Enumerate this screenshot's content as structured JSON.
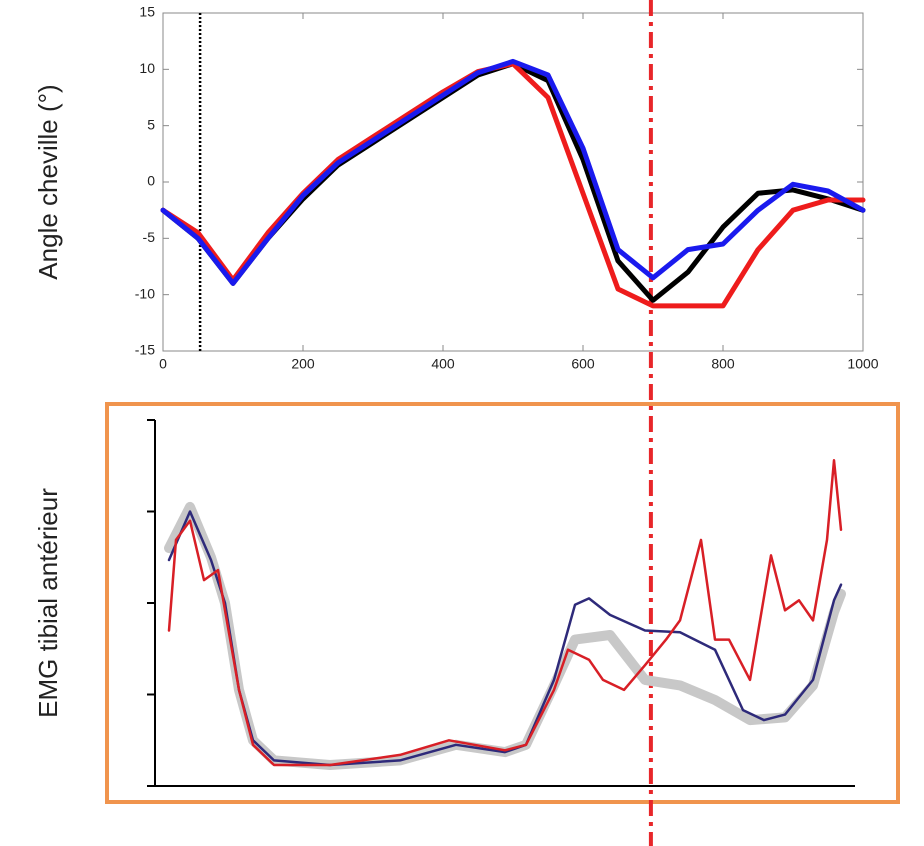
{
  "chart_data": [
    {
      "type": "line",
      "ylabel": "Angle cheville (°)",
      "xlim": [
        0,
        1000
      ],
      "xticks": [
        0,
        200,
        400,
        600,
        800,
        1000
      ],
      "ylim": [
        -15,
        15
      ],
      "yticks": [
        -15,
        -10,
        -5,
        0,
        5,
        10,
        15
      ],
      "vlines": [
        {
          "x": 53,
          "color": "#000000",
          "style": "dotted"
        },
        {
          "x": 697,
          "color": "#e8262a",
          "style": "dashdot"
        }
      ],
      "series": [
        {
          "color": "#000000",
          "x": [
            0,
            50,
            100,
            150,
            200,
            250,
            300,
            350,
            400,
            450,
            500,
            550,
            600,
            650,
            700,
            750,
            800,
            850,
            900,
            950,
            1000
          ],
          "values": [
            -2.5,
            -5,
            -9,
            -5,
            -1.5,
            1.5,
            3.5,
            5.5,
            7.5,
            9.5,
            10.5,
            9,
            2,
            -7,
            -10.5,
            -8,
            -4,
            -1,
            -0.7,
            -1.5,
            -2.5
          ]
        },
        {
          "color": "#ee1c1c",
          "x": [
            0,
            50,
            100,
            150,
            200,
            250,
            300,
            350,
            400,
            450,
            500,
            550,
            600,
            650,
            700,
            750,
            800,
            850,
            900,
            950,
            1000
          ],
          "values": [
            -2.5,
            -4.5,
            -8.7,
            -4.5,
            -1,
            2,
            4,
            6,
            8,
            9.8,
            10.5,
            7.5,
            -1,
            -9.5,
            -11,
            -11,
            -11,
            -6,
            -2.5,
            -1.6,
            -1.6
          ]
        },
        {
          "color": "#1a1aee",
          "x": [
            0,
            50,
            100,
            150,
            200,
            250,
            300,
            350,
            400,
            450,
            500,
            550,
            600,
            650,
            700,
            750,
            800,
            850,
            900,
            950,
            1000
          ],
          "values": [
            -2.5,
            -5,
            -9,
            -5,
            -1.2,
            1.7,
            3.7,
            5.7,
            7.7,
            9.7,
            10.7,
            9.5,
            3,
            -6,
            -8.5,
            -6,
            -5.5,
            -2.5,
            -0.2,
            -0.8,
            -2.5
          ]
        }
      ]
    },
    {
      "type": "line",
      "ylabel": "EMG tibial antérieur",
      "xlim": [
        0,
        100
      ],
      "ylim": [
        0,
        4
      ],
      "yticks": [
        0,
        1,
        2,
        3,
        4
      ],
      "series": [
        {
          "color": "#c8c8c8",
          "x": [
            2,
            5,
            8,
            10,
            12,
            14,
            17,
            25,
            35,
            43,
            50,
            53,
            57,
            60,
            65,
            70,
            75,
            80,
            85,
            90,
            94,
            97,
            98
          ],
          "values": [
            2.6,
            3.05,
            2.5,
            2.0,
            1.05,
            0.5,
            0.28,
            0.23,
            0.28,
            0.45,
            0.37,
            0.45,
            1.1,
            1.6,
            1.65,
            1.16,
            1.1,
            0.94,
            0.72,
            0.75,
            1.1,
            1.9,
            2.1
          ]
        },
        {
          "color": "#2e2a7a",
          "x": [
            2,
            5,
            8,
            10,
            12,
            14,
            17,
            25,
            35,
            43,
            50,
            53,
            57,
            60,
            62,
            65,
            70,
            75,
            80,
            84,
            87,
            90,
            94,
            97,
            98
          ],
          "values": [
            2.47,
            3.0,
            2.47,
            2.0,
            1.05,
            0.5,
            0.28,
            0.23,
            0.28,
            0.45,
            0.37,
            0.45,
            1.16,
            1.98,
            2.05,
            1.87,
            1.7,
            1.68,
            1.49,
            0.83,
            0.72,
            0.78,
            1.16,
            2.03,
            2.2
          ]
        },
        {
          "color": "#d81f26",
          "x": [
            2,
            3,
            5,
            7,
            9,
            10,
            12,
            14,
            17,
            25,
            35,
            42,
            50,
            53,
            57,
            59,
            62,
            64,
            67,
            70,
            73,
            75,
            78,
            80,
            82,
            85,
            88,
            90,
            92,
            94,
            96,
            97,
            98
          ],
          "values": [
            1.7,
            2.69,
            2.9,
            2.25,
            2.36,
            1.92,
            1.05,
            0.45,
            0.23,
            0.23,
            0.34,
            0.5,
            0.39,
            0.45,
            1.05,
            1.49,
            1.38,
            1.16,
            1.05,
            1.32,
            1.6,
            1.81,
            2.69,
            1.6,
            1.6,
            1.16,
            2.52,
            1.92,
            2.03,
            1.81,
            2.69,
            3.56,
            2.8
          ]
        }
      ]
    }
  ]
}
